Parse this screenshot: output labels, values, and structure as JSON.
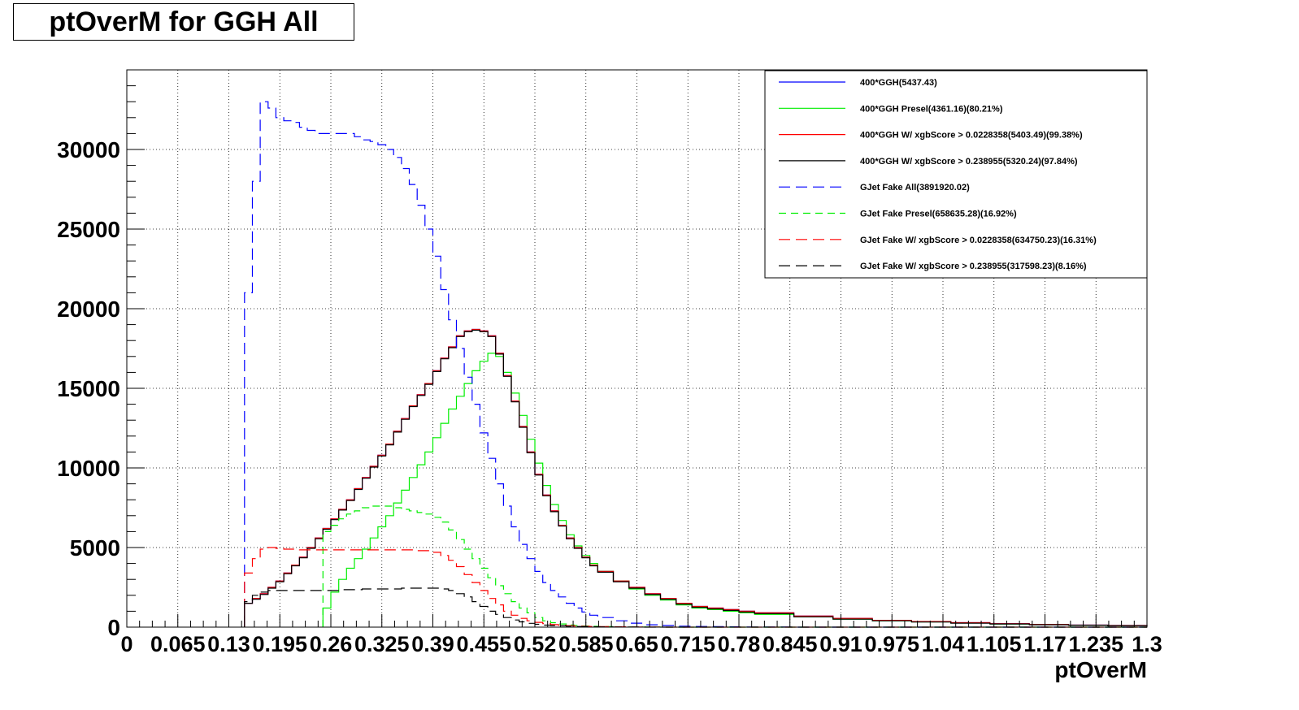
{
  "title": "ptOverM for GGH All",
  "chart_data": {
    "type": "line",
    "title": "ptOverM for GGH All",
    "xlabel": "ptOverM",
    "ylabel": "",
    "xlim": [
      0,
      1.3
    ],
    "ylim": [
      0,
      35000
    ],
    "grid": true,
    "legend_position": "top-right",
    "x_tick_labels": [
      "0",
      "0.065",
      "0.13",
      "0.195",
      "0.26",
      "0.325",
      "0.39",
      "0.455",
      "0.52",
      "0.585",
      "0.65",
      "0.715",
      "0.78",
      "0.845",
      "0.91",
      "0.975",
      "1.04",
      "1.105",
      "1.17",
      "1.235",
      "1.3"
    ],
    "y_tick_labels": [
      "0",
      "5000",
      "10000",
      "15000",
      "20000",
      "25000",
      "30000"
    ],
    "y_tick_values": [
      0,
      5000,
      10000,
      15000,
      20000,
      25000,
      30000
    ],
    "x": [
      0.15,
      0.16,
      0.17,
      0.18,
      0.19,
      0.2,
      0.21,
      0.22,
      0.23,
      0.24,
      0.25,
      0.26,
      0.27,
      0.28,
      0.29,
      0.3,
      0.31,
      0.32,
      0.33,
      0.34,
      0.35,
      0.36,
      0.37,
      0.38,
      0.39,
      0.4,
      0.41,
      0.42,
      0.43,
      0.44,
      0.45,
      0.46,
      0.47,
      0.48,
      0.49,
      0.5,
      0.51,
      0.52,
      0.53,
      0.54,
      0.55,
      0.56,
      0.57,
      0.58,
      0.59,
      0.6,
      0.62,
      0.64,
      0.66,
      0.68,
      0.7,
      0.72,
      0.74,
      0.76,
      0.78,
      0.8,
      0.85,
      0.9,
      0.95,
      1.0,
      1.05,
      1.1,
      1.15,
      1.2,
      1.25,
      1.3
    ],
    "series": [
      {
        "name": "400*GGH(5437.43)",
        "color": "#0000ff",
        "dash": "solid",
        "values": [
          1500,
          1800,
          2100,
          2500,
          2900,
          3400,
          3900,
          4400,
          5000,
          5600,
          6200,
          6800,
          7400,
          8000,
          8700,
          9400,
          10100,
          10800,
          11500,
          12300,
          13100,
          13900,
          14600,
          15300,
          16100,
          16900,
          17600,
          18300,
          18600,
          18700,
          18600,
          18300,
          17200,
          15800,
          14200,
          12600,
          11000,
          9600,
          8300,
          7300,
          6400,
          5600,
          5000,
          4400,
          3900,
          3500,
          2900,
          2500,
          2100,
          1800,
          1500,
          1300,
          1200,
          1100,
          1000,
          900,
          700,
          550,
          430,
          350,
          280,
          220,
          170,
          130,
          100,
          80
        ]
      },
      {
        "name": "400*GGH Presel(4361.16)(80.21%)",
        "color": "#00ee00",
        "dash": "solid",
        "values": [
          null,
          null,
          null,
          null,
          null,
          null,
          null,
          null,
          null,
          null,
          1200,
          2200,
          3000,
          3700,
          4300,
          4900,
          5600,
          6300,
          7000,
          7800,
          8600,
          9400,
          10200,
          11000,
          11900,
          12800,
          13700,
          14500,
          15300,
          16100,
          16700,
          17200,
          17000,
          16000,
          14700,
          13300,
          11800,
          10300,
          8900,
          7700,
          6700,
          5800,
          5100,
          4500,
          4000,
          3500,
          2900,
          2400,
          2000,
          1700,
          1400,
          1200,
          1100,
          1000,
          900,
          800,
          650,
          500,
          400,
          330,
          260,
          200,
          160,
          120,
          90,
          70
        ]
      },
      {
        "name": "400*GGH W/ xgbScore > 0.0228358(5403.49)(99.38%)",
        "color": "#ff0000",
        "dash": "solid",
        "values": [
          1500,
          1800,
          2100,
          2500,
          2900,
          3400,
          3900,
          4400,
          5000,
          5600,
          6200,
          6800,
          7400,
          8000,
          8700,
          9400,
          10100,
          10800,
          11500,
          12300,
          13100,
          13900,
          14600,
          15300,
          16100,
          16900,
          17600,
          18300,
          18600,
          18700,
          18600,
          18300,
          17200,
          15800,
          14200,
          12600,
          11000,
          9600,
          8300,
          7300,
          6400,
          5600,
          5000,
          4400,
          3900,
          3500,
          2900,
          2500,
          2100,
          1800,
          1500,
          1300,
          1200,
          1100,
          1000,
          900,
          700,
          550,
          430,
          350,
          280,
          220,
          170,
          130,
          100,
          80
        ]
      },
      {
        "name": "400*GGH W/ xgbScore > 0.238955(5320.24)(97.84%)",
        "color": "#000000",
        "dash": "solid",
        "values": [
          1500,
          1750,
          2050,
          2450,
          2850,
          3350,
          3850,
          4350,
          4950,
          5550,
          6150,
          6750,
          7350,
          7950,
          8650,
          9350,
          10050,
          10750,
          11450,
          12250,
          13050,
          13850,
          14550,
          15250,
          16050,
          16850,
          17550,
          18250,
          18550,
          18650,
          18550,
          18250,
          17150,
          15750,
          14150,
          12550,
          10950,
          9550,
          8250,
          7250,
          6350,
          5550,
          4950,
          4350,
          3850,
          3450,
          2850,
          2450,
          2050,
          1750,
          1450,
          1250,
          1150,
          1050,
          950,
          850,
          650,
          500,
          400,
          320,
          250,
          200,
          150,
          120,
          90,
          70
        ]
      },
      {
        "name": "GJet Fake All(3891920.02)",
        "color": "#0000ff",
        "dash": "long",
        "values": [
          21000,
          28000,
          33000,
          32600,
          32000,
          31800,
          31700,
          31400,
          31200,
          31000,
          31000,
          31000,
          31000,
          31000,
          30800,
          30600,
          30500,
          30300,
          30000,
          29500,
          28800,
          27800,
          26500,
          25000,
          23300,
          21200,
          19300,
          17500,
          15700,
          14000,
          12200,
          10600,
          9000,
          7600,
          6300,
          5200,
          4300,
          3500,
          2800,
          2300,
          1900,
          1500,
          1200,
          950,
          750,
          600,
          400,
          250,
          150,
          100,
          60,
          40,
          30,
          20,
          10,
          5,
          0,
          0,
          0,
          0,
          0,
          0,
          0,
          0,
          0,
          0
        ]
      },
      {
        "name": "GJet Fake Presel(658635.28)(16.92%)",
        "color": "#00ee00",
        "dash": "medium",
        "values": [
          null,
          null,
          null,
          null,
          null,
          null,
          null,
          null,
          null,
          null,
          6000,
          6400,
          6800,
          7100,
          7300,
          7500,
          7600,
          7600,
          7600,
          7500,
          7400,
          7300,
          7200,
          7100,
          6900,
          6600,
          6100,
          5500,
          4900,
          4300,
          3700,
          3100,
          2600,
          2100,
          1600,
          1200,
          900,
          600,
          400,
          280,
          200,
          140,
          100,
          70,
          50,
          30,
          20,
          10,
          5,
          0,
          0,
          0,
          0,
          0,
          0,
          0,
          0,
          0,
          0,
          0,
          0,
          0,
          0,
          0,
          0,
          0
        ]
      },
      {
        "name": "GJet Fake W/ xgbScore > 0.0228358(634750.23)(16.31%)",
        "color": "#ff0000",
        "dash": "long",
        "values": [
          3400,
          4300,
          4900,
          5000,
          4950,
          4900,
          4900,
          4850,
          4850,
          4850,
          4850,
          4850,
          4850,
          4850,
          4850,
          4850,
          4850,
          4850,
          4850,
          4850,
          4850,
          4850,
          4800,
          4800,
          4700,
          4500,
          4200,
          3800,
          3300,
          2800,
          2300,
          1800,
          1400,
          1000,
          750,
          550,
          400,
          300,
          220,
          160,
          120,
          90,
          70,
          50,
          40,
          30,
          20,
          10,
          5,
          0,
          0,
          0,
          0,
          0,
          0,
          0,
          0,
          0,
          0,
          0,
          0,
          0,
          0,
          0,
          0,
          0
        ]
      },
      {
        "name": "GJet Fake W/ xgbScore > 0.238955(317598.23)(8.16%)",
        "color": "#000000",
        "dash": "long",
        "values": [
          1600,
          2000,
          2200,
          2300,
          2300,
          2300,
          2300,
          2300,
          2300,
          2300,
          2300,
          2300,
          2350,
          2350,
          2350,
          2400,
          2400,
          2400,
          2400,
          2400,
          2450,
          2450,
          2450,
          2450,
          2450,
          2400,
          2300,
          2100,
          1900,
          1600,
          1300,
          1000,
          800,
          600,
          450,
          330,
          240,
          180,
          130,
          100,
          80,
          60,
          40,
          30,
          20,
          15,
          10,
          5,
          0,
          0,
          0,
          0,
          0,
          0,
          0,
          0,
          0,
          0,
          0,
          0,
          0,
          0,
          0,
          0,
          0,
          0
        ]
      }
    ]
  }
}
